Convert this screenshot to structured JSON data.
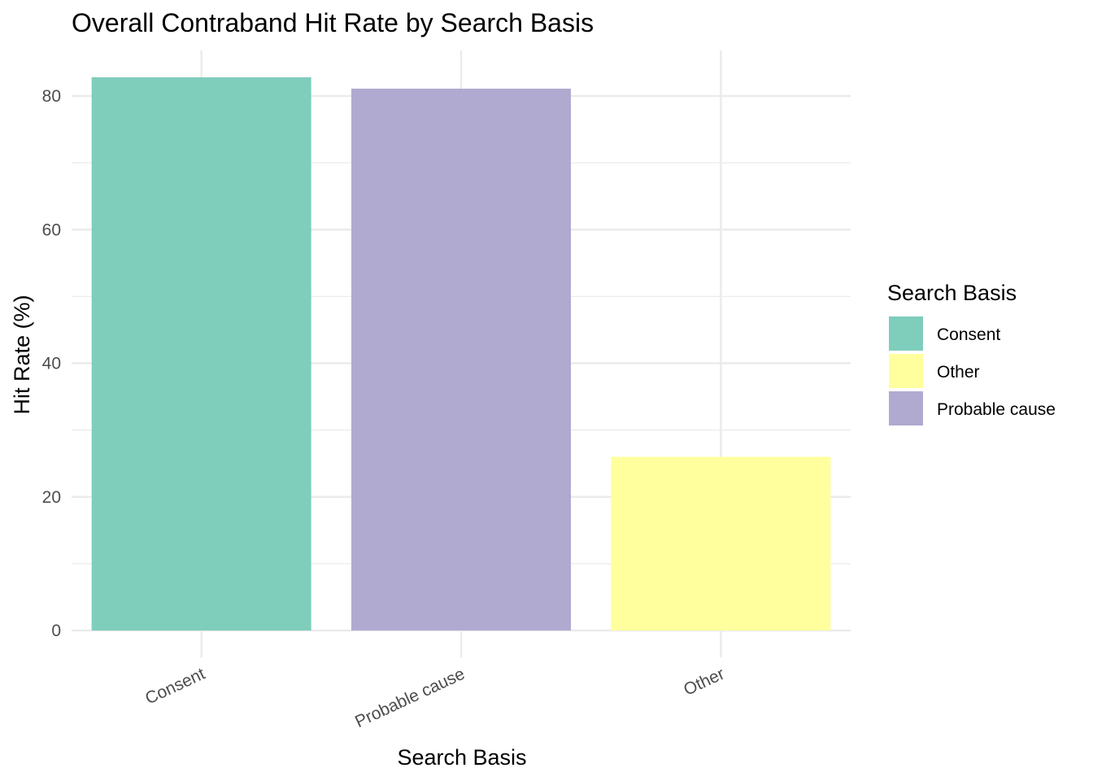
{
  "chart_data": {
    "type": "bar",
    "title": "Overall Contraband Hit Rate by Search Basis",
    "xlabel": "Search Basis",
    "ylabel": "Hit Rate (%)",
    "categories": [
      "Consent",
      "Probable cause",
      "Other"
    ],
    "values": [
      82.8,
      81.1,
      26.0
    ],
    "bar_colors": [
      "#7FCDBB",
      "#B0AAD0",
      "#FFFF9E"
    ],
    "ylim": [
      0,
      86
    ],
    "yticks": [
      0,
      20,
      40,
      60,
      80
    ],
    "ytick_labels": [
      "0",
      "20",
      "40",
      "60",
      "80"
    ],
    "grid": true,
    "legend": {
      "title": "Search Basis",
      "placement": "right",
      "entries": [
        {
          "label": "Consent",
          "color": "#7FCDBB"
        },
        {
          "label": "Other",
          "color": "#FFFF9E"
        },
        {
          "label": "Probable cause",
          "color": "#B0AAD0"
        }
      ]
    }
  }
}
